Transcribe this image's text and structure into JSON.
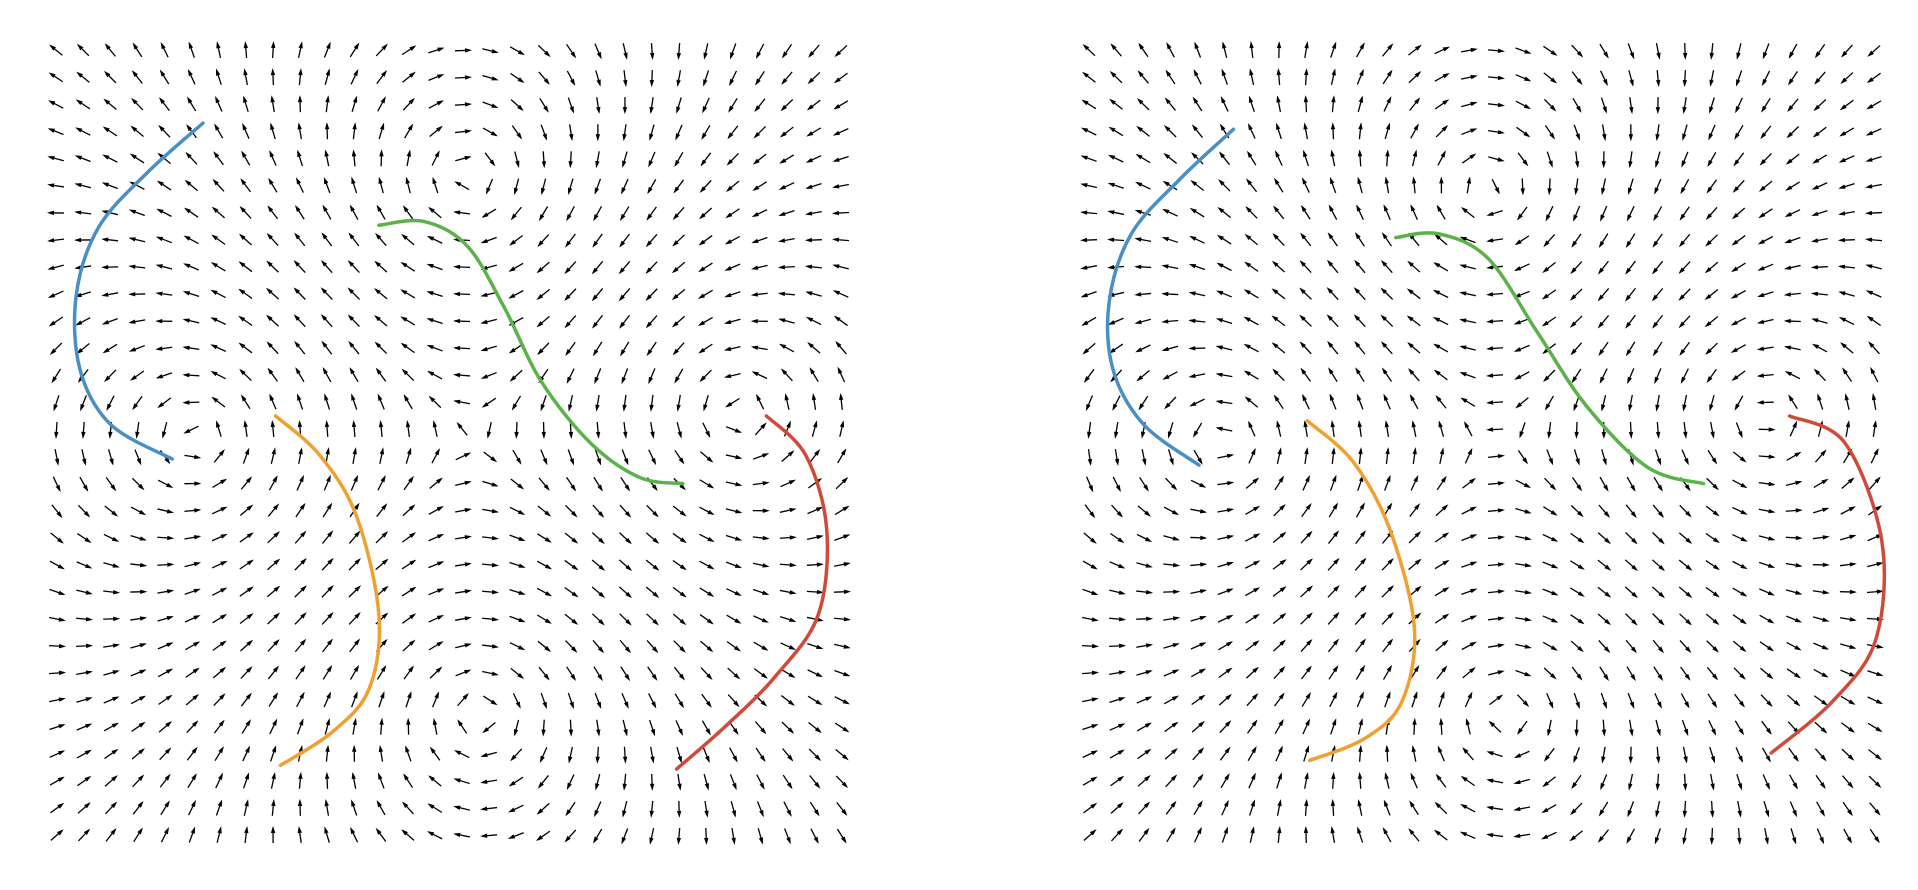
{
  "chart_data": [
    {
      "type": "quiver",
      "xlim": [
        0,
        660
      ],
      "ylim": [
        0,
        660
      ],
      "grid_count": 30,
      "vortices": {
        "x": [
          125,
          345,
          565,
          355
        ],
        "y": [
          335,
          545,
          355,
          110
        ],
        "strength": [
          1,
          -1,
          1,
          -1
        ]
      },
      "series": [
        {
          "color": "#4a8fc4",
          "x": [
            130,
            85,
            45,
            27,
            30,
            55,
            105
          ],
          "y": [
            590,
            550,
            505,
            450,
            390,
            345,
            317
          ]
        },
        {
          "color": "#5bb14a",
          "x": [
            273,
            310,
            345,
            375,
            405,
            445,
            485,
            520
          ],
          "y": [
            507,
            510,
            490,
            440,
            380,
            330,
            302,
            297
          ]
        },
        {
          "color": "#f0a030",
          "x": [
            189,
            225,
            255,
            273,
            265,
            235,
            193
          ],
          "y": [
            352,
            320,
            270,
            190,
            130,
            95,
            68
          ]
        },
        {
          "color": "#d04a3a",
          "x": [
            588,
            620,
            637,
            630,
            595,
            555,
            515
          ],
          "y": [
            352,
            320,
            260,
            190,
            140,
            100,
            65
          ]
        }
      ]
    },
    {
      "type": "quiver",
      "xlim": [
        0,
        660
      ],
      "ylim": [
        0,
        660
      ],
      "grid_count": 30,
      "vortices": {
        "x": [
          120,
          335,
          560,
          350
        ],
        "y": [
          330,
          535,
          350,
          110
        ],
        "strength": [
          1,
          -1,
          1,
          -1
        ]
      },
      "series": [
        {
          "color": "#4a8fc4",
          "x": [
            128,
            85,
            45,
            27,
            30,
            55,
            100
          ],
          "y": [
            585,
            545,
            500,
            445,
            390,
            345,
            312
          ]
        },
        {
          "color": "#5bb14a",
          "x": [
            260,
            295,
            335,
            375,
            415,
            465,
            510
          ],
          "y": [
            497,
            500,
            480,
            420,
            360,
            310,
            297
          ]
        },
        {
          "color": "#f0a030",
          "x": [
            188,
            225,
            255,
            275,
            265,
            235,
            190
          ],
          "y": [
            348,
            315,
            260,
            180,
            120,
            90,
            72
          ]
        },
        {
          "color": "#d04a3a",
          "x": [
            580,
            625,
            655,
            650,
            615,
            565
          ],
          "y": [
            352,
            330,
            250,
            170,
            120,
            78
          ]
        }
      ]
    }
  ]
}
